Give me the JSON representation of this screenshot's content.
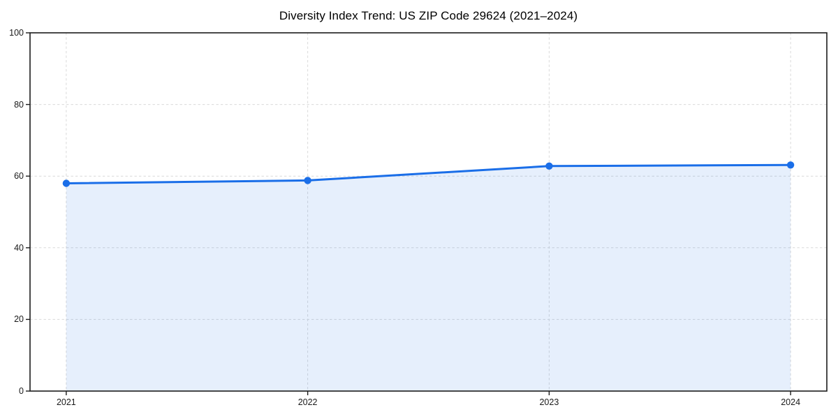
{
  "chart_data": {
    "type": "area",
    "title": "Diversity Index Trend: US ZIP Code 29624 (2021–2024)",
    "categories": [
      2021,
      2022,
      2023,
      2024
    ],
    "series": [
      {
        "name": "Diversity Index",
        "values": [
          58.0,
          58.8,
          62.8,
          63.1
        ]
      }
    ],
    "xlabel": "",
    "ylabel": "",
    "xlim": [
      2020.85,
      2024.15
    ],
    "ylim": [
      0,
      100
    ],
    "yticks": [
      0,
      20,
      40,
      60,
      80,
      100
    ],
    "xticks": [
      2021,
      2022,
      2023,
      2024
    ],
    "grid": true,
    "grid_style": "dashed",
    "legend_position": "none",
    "line_color": "#1a6ee8",
    "fill_color": "#1a6ee8",
    "fill_opacity": 0.11,
    "grid_color": "#d9d9d9",
    "spine_color": "#1c1c1c",
    "background_color": "#ffffff"
  }
}
